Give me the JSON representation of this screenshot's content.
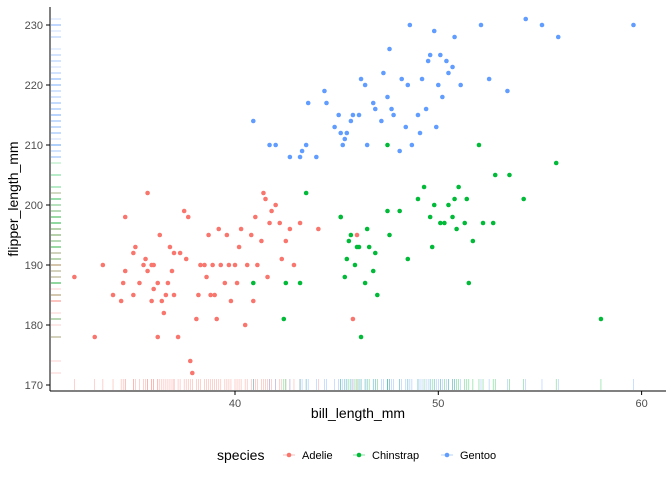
{
  "chart_data": {
    "type": "scatter",
    "xlabel": "bill_length_mm",
    "ylabel": "flipper_length_mm",
    "xlim": [
      30.9,
      61.2
    ],
    "ylim": [
      169,
      233
    ],
    "x_ticks": [
      40,
      50,
      60
    ],
    "y_ticks": [
      170,
      180,
      190,
      200,
      210,
      220,
      230
    ],
    "grid": false,
    "rug": {
      "x_axis": "bottom",
      "y_axis": "left"
    },
    "legend": {
      "title": "species",
      "position": "bottom"
    },
    "series": [
      {
        "name": "Adelie",
        "color": "#F8766D",
        "points": [
          [
            32.1,
            188
          ],
          [
            33.1,
            178
          ],
          [
            33.5,
            190
          ],
          [
            34.0,
            185
          ],
          [
            34.4,
            184
          ],
          [
            34.5,
            187
          ],
          [
            34.6,
            189
          ],
          [
            34.6,
            198
          ],
          [
            35.0,
            192
          ],
          [
            35.0,
            185
          ],
          [
            35.1,
            193
          ],
          [
            35.3,
            187
          ],
          [
            35.5,
            190
          ],
          [
            35.6,
            191
          ],
          [
            35.7,
            189
          ],
          [
            35.7,
            202
          ],
          [
            35.9,
            190
          ],
          [
            35.9,
            184
          ],
          [
            36.0,
            186
          ],
          [
            36.0,
            190
          ],
          [
            36.2,
            187
          ],
          [
            36.2,
            178
          ],
          [
            36.3,
            195
          ],
          [
            36.4,
            184
          ],
          [
            36.5,
            182
          ],
          [
            36.6,
            185
          ],
          [
            36.7,
            187
          ],
          [
            36.8,
            193
          ],
          [
            36.9,
            189
          ],
          [
            37.0,
            185
          ],
          [
            37.2,
            178
          ],
          [
            37.3,
            192
          ],
          [
            37.5,
            199
          ],
          [
            37.6,
            191
          ],
          [
            37.7,
            198
          ],
          [
            37.8,
            174
          ],
          [
            37.9,
            172
          ],
          [
            38.1,
            181
          ],
          [
            38.2,
            185
          ],
          [
            38.3,
            190
          ],
          [
            38.5,
            190
          ],
          [
            38.6,
            188
          ],
          [
            38.8,
            185
          ],
          [
            38.9,
            190
          ],
          [
            39.0,
            185
          ],
          [
            39.2,
            196
          ],
          [
            39.3,
            190
          ],
          [
            39.5,
            187
          ],
          [
            39.6,
            195
          ],
          [
            39.7,
            190
          ],
          [
            39.8,
            184
          ],
          [
            40.0,
            190
          ],
          [
            40.2,
            193
          ],
          [
            40.3,
            196
          ],
          [
            40.5,
            180
          ],
          [
            40.6,
            190
          ],
          [
            40.8,
            195
          ],
          [
            40.9,
            184
          ],
          [
            41.0,
            198
          ],
          [
            41.1,
            190
          ],
          [
            41.3,
            194
          ],
          [
            41.4,
            202
          ],
          [
            41.5,
            201
          ],
          [
            41.6,
            188
          ],
          [
            41.8,
            199
          ],
          [
            42.0,
            200
          ],
          [
            42.2,
            197
          ],
          [
            42.3,
            191
          ],
          [
            42.5,
            194
          ],
          [
            42.7,
            196
          ],
          [
            42.9,
            190
          ],
          [
            43.2,
            197
          ],
          [
            44.1,
            196
          ],
          [
            45.8,
            181
          ],
          [
            46.0,
            195
          ],
          [
            38.7,
            195
          ],
          [
            37.0,
            192
          ],
          [
            39.1,
            181
          ],
          [
            40.1,
            187
          ],
          [
            41.7,
            197
          ]
        ]
      },
      {
        "name": "Chinstrap",
        "color": "#00BA38",
        "points": [
          [
            40.9,
            187
          ],
          [
            42.4,
            181
          ],
          [
            42.5,
            187
          ],
          [
            43.2,
            187
          ],
          [
            43.5,
            202
          ],
          [
            45.2,
            198
          ],
          [
            45.4,
            188
          ],
          [
            45.5,
            191
          ],
          [
            45.6,
            194
          ],
          [
            45.7,
            195
          ],
          [
            45.9,
            190
          ],
          [
            46.1,
            193
          ],
          [
            46.2,
            178
          ],
          [
            46.4,
            187
          ],
          [
            46.5,
            196
          ],
          [
            46.6,
            193
          ],
          [
            46.8,
            189
          ],
          [
            46.9,
            192
          ],
          [
            47.0,
            185
          ],
          [
            47.5,
            199
          ],
          [
            47.6,
            195
          ],
          [
            48.1,
            199
          ],
          [
            48.5,
            191
          ],
          [
            49.0,
            201
          ],
          [
            49.3,
            203
          ],
          [
            49.6,
            198
          ],
          [
            49.8,
            200
          ],
          [
            50.1,
            197
          ],
          [
            50.3,
            197
          ],
          [
            50.5,
            200
          ],
          [
            50.7,
            198
          ],
          [
            50.8,
            201
          ],
          [
            51.0,
            203
          ],
          [
            51.3,
            197
          ],
          [
            51.4,
            201
          ],
          [
            51.5,
            187
          ],
          [
            51.7,
            194
          ],
          [
            52.0,
            210
          ],
          [
            52.2,
            197
          ],
          [
            52.7,
            197
          ],
          [
            53.5,
            205
          ],
          [
            54.2,
            201
          ],
          [
            55.8,
            207
          ],
          [
            58.0,
            181
          ],
          [
            49.7,
            193
          ],
          [
            50.9,
            196
          ],
          [
            52.8,
            205
          ],
          [
            47.5,
            210
          ],
          [
            46.0,
            193
          ],
          [
            45.2,
            198
          ]
        ]
      },
      {
        "name": "Gentoo",
        "color": "#619CFF",
        "points": [
          [
            40.9,
            214
          ],
          [
            41.7,
            210
          ],
          [
            42.0,
            210
          ],
          [
            42.7,
            208
          ],
          [
            43.2,
            208
          ],
          [
            43.3,
            209
          ],
          [
            43.5,
            210
          ],
          [
            43.6,
            217
          ],
          [
            44.0,
            208
          ],
          [
            44.4,
            219
          ],
          [
            44.5,
            217
          ],
          [
            44.9,
            213
          ],
          [
            45.1,
            215
          ],
          [
            45.2,
            212
          ],
          [
            45.3,
            210
          ],
          [
            45.4,
            211
          ],
          [
            45.5,
            212
          ],
          [
            45.7,
            214
          ],
          [
            45.8,
            215
          ],
          [
            46.1,
            215
          ],
          [
            46.2,
            221
          ],
          [
            46.4,
            220
          ],
          [
            46.5,
            210
          ],
          [
            46.8,
            217
          ],
          [
            46.9,
            216
          ],
          [
            47.2,
            214
          ],
          [
            47.3,
            222
          ],
          [
            47.5,
            218
          ],
          [
            47.7,
            216
          ],
          [
            47.8,
            215
          ],
          [
            48.1,
            209
          ],
          [
            48.2,
            221
          ],
          [
            48.4,
            213
          ],
          [
            48.5,
            220
          ],
          [
            48.6,
            230
          ],
          [
            48.7,
            210
          ],
          [
            49.0,
            215
          ],
          [
            49.1,
            212
          ],
          [
            49.2,
            221
          ],
          [
            49.4,
            216
          ],
          [
            49.5,
            224
          ],
          [
            49.6,
            225
          ],
          [
            49.8,
            229
          ],
          [
            50.0,
            220
          ],
          [
            50.1,
            225
          ],
          [
            50.2,
            218
          ],
          [
            50.4,
            224
          ],
          [
            50.5,
            222
          ],
          [
            50.7,
            223
          ],
          [
            50.8,
            228
          ],
          [
            51.1,
            220
          ],
          [
            52.1,
            230
          ],
          [
            52.5,
            221
          ],
          [
            53.4,
            219
          ],
          [
            54.3,
            231
          ],
          [
            55.1,
            230
          ],
          [
            55.9,
            228
          ],
          [
            59.6,
            230
          ],
          [
            47.6,
            226
          ],
          [
            49.9,
            213
          ]
        ]
      }
    ]
  }
}
